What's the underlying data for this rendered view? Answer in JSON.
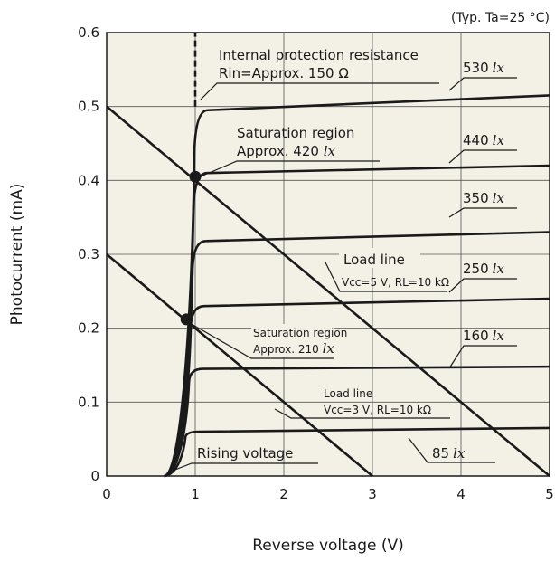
{
  "chart_data": {
    "type": "line",
    "corner_note": "(Typ. Ta=25 °C)",
    "xlabel": "Reverse voltage (V)",
    "ylabel": "Photocurrent (mA)",
    "xlim": [
      0,
      5
    ],
    "ylim": [
      0,
      0.6
    ],
    "x_ticks": [
      "0",
      "1",
      "2",
      "3",
      "4",
      "5"
    ],
    "y_ticks": [
      "0",
      "0.1",
      "0.2",
      "0.3",
      "0.4",
      "0.5",
      "0.6"
    ],
    "grid": true,
    "background": "#f3f0e6",
    "curve_color": "#1a1a1a",
    "series": [
      {
        "name": "530 lx",
        "label_num": "530",
        "label_unit": "lx",
        "sat_x": 1.0,
        "sat_y": 0.495,
        "end_y": 0.515
      },
      {
        "name": "440 lx",
        "label_num": "440",
        "label_unit": "lx",
        "sat_x": 0.99,
        "sat_y": 0.41,
        "end_y": 0.42
      },
      {
        "name": "350 lx",
        "label_num": "350",
        "label_unit": "lx",
        "sat_x": 0.98,
        "sat_y": 0.318,
        "end_y": 0.33
      },
      {
        "name": "250 lx",
        "label_num": "250",
        "label_unit": "lx",
        "sat_x": 0.96,
        "sat_y": 0.23,
        "end_y": 0.24
      },
      {
        "name": "160 lx",
        "label_num": "160",
        "label_unit": "lx",
        "sat_x": 0.94,
        "sat_y": 0.145,
        "end_y": 0.148
      },
      {
        "name": "85 lx",
        "label_num": "85",
        "label_unit": "lx",
        "sat_x": 0.9,
        "sat_y": 0.06,
        "end_y": 0.065
      }
    ],
    "rising_start_x": 0.65,
    "load_lines": [
      {
        "name": "Load line Vcc=5 V, RL=10 kΩ",
        "line1": "Load line",
        "line2": "Vcc=5 V, RL=10 kΩ",
        "x": [
          0,
          5
        ],
        "y": [
          0.5,
          0
        ]
      },
      {
        "name": "Load line Vcc=3 V, RL=10 kΩ",
        "line1": "Load line",
        "line2": "Vcc=3 V, RL=10 kΩ",
        "x": [
          0,
          3
        ],
        "y": [
          0.3,
          0
        ]
      }
    ],
    "protection_line": {
      "x": 1.0,
      "y_from": 0.5,
      "y_to": 0.6
    },
    "points": [
      {
        "name": "Saturation region Approx. 420 lx",
        "x": 1.0,
        "y": 0.405
      },
      {
        "name": "Saturation region Approx. 210 lx",
        "x": 0.9,
        "y": 0.212
      }
    ],
    "annotations": {
      "protection_line1": "Internal protection resistance",
      "protection_line2": "Rin=Approx. 150 Ω",
      "sat_high_line1": "Saturation region",
      "sat_high_line2": "Approx. 420",
      "sat_high_unit": "lx",
      "sat_low_line1": "Saturation region",
      "sat_low_line2": "Approx. 210",
      "sat_low_unit": "lx",
      "rising": "Rising voltage"
    }
  }
}
